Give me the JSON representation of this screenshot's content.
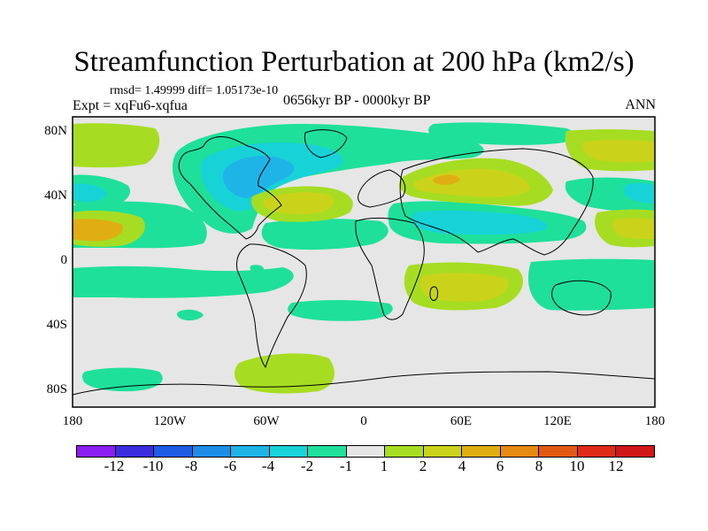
{
  "title": "Streamfunction Perturbation at 200 hPa (km2/s)",
  "stats": "rmsd= 1.49999 diff= 1.05173e-10",
  "experiment": "Expt = xqFu6-xqfua",
  "period": "0656kyr BP - 0000kyr BP",
  "season": "ANN",
  "lat_labels": [
    "80N",
    "40N",
    "0",
    "40S",
    "80S"
  ],
  "lon_labels": [
    "180",
    "120W",
    "60W",
    "0",
    "60E",
    "120E",
    "180"
  ],
  "colorbar": {
    "labels": [
      "-12",
      "-10",
      "-8",
      "-6",
      "-4",
      "-2",
      "-1",
      "1",
      "2",
      "4",
      "6",
      "8",
      "10",
      "12"
    ],
    "colors": [
      "#8a1ef0",
      "#3a2ee0",
      "#1f5ce6",
      "#1c8ee8",
      "#1fb4e8",
      "#17d3d8",
      "#1ee09a",
      "#e6e6e6",
      "#a6dd22",
      "#cad31a",
      "#e0ae12",
      "#e68a12",
      "#e25a12",
      "#e02a18",
      "#d01616"
    ]
  },
  "anomaly_colors": {
    "background": "#e6e6e6",
    "neg_weak": "#1ee09a",
    "neg_mid": "#17d3d8",
    "neg_strong": "#1fb4e8",
    "pos_weak": "#a6dd22",
    "pos_mid": "#cad31a",
    "pos_strong": "#e0ae12"
  }
}
